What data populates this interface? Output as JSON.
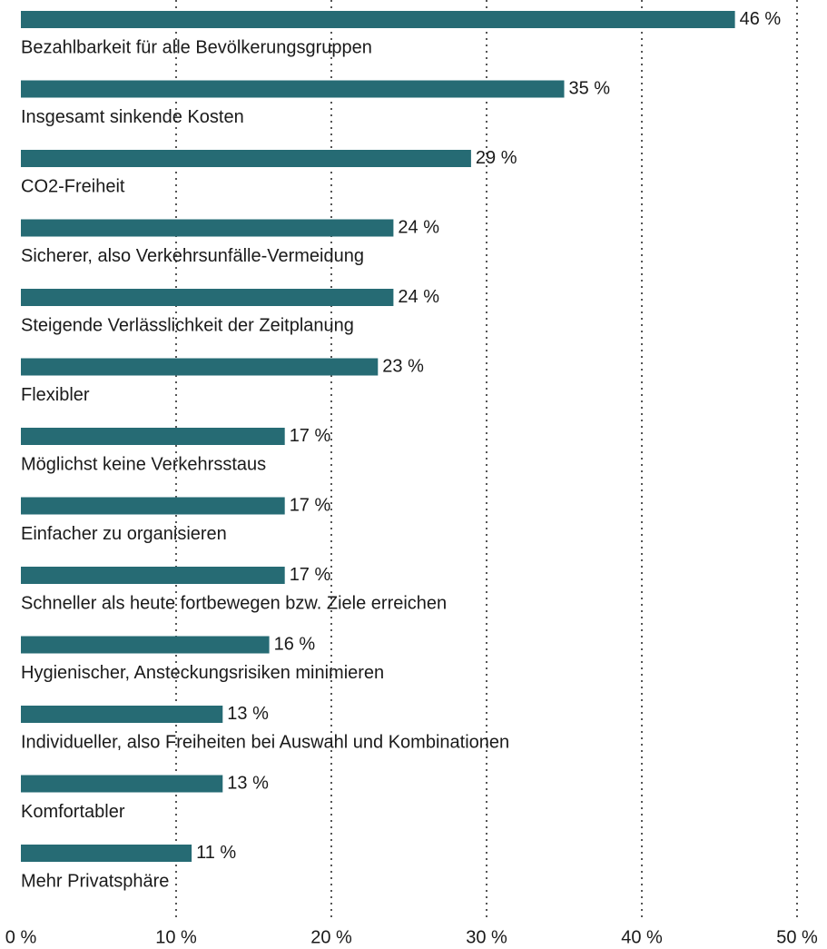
{
  "chart_data": {
    "type": "hbar",
    "categories": [
      "Bezahlbarkeit für alle Bevölkerungsgruppen",
      "Insgesamt sinkende Kosten",
      "CO2-Freiheit",
      "Sicherer, also Verkehrsunfälle-Vermeidung",
      "Steigende Verlässlichkeit der Zeitplanung",
      "Flexibler",
      "Möglichst keine Verkehrsstaus",
      "Einfacher zu organisieren",
      "Schneller als heute fortbewegen bzw. Ziele erreichen",
      "Hygienischer, Ansteckungsrisiken minimieren",
      "Individueller, also Freiheiten bei Auswahl und Kombinationen",
      "Komfortabler",
      "Mehr Privatsphäre"
    ],
    "values": [
      46,
      35,
      29,
      24,
      24,
      23,
      17,
      17,
      17,
      16,
      13,
      13,
      11
    ],
    "value_labels": [
      "46 %",
      "35 %",
      "29 %",
      "24 %",
      "24 %",
      "23 %",
      "17 %",
      "17 %",
      "17 %",
      "16 %",
      "13 %",
      "13 %",
      "11 %"
    ],
    "color": "#266b74",
    "xlim": [
      0,
      50
    ],
    "xticks": [
      {
        "value": 0,
        "label": "0 %"
      },
      {
        "value": 10,
        "label": "10 %"
      },
      {
        "value": 20,
        "label": "20 %"
      },
      {
        "value": 30,
        "label": "30 %"
      },
      {
        "value": 40,
        "label": "40 %"
      },
      {
        "value": 50,
        "label": "50 %"
      }
    ],
    "grid": true
  }
}
